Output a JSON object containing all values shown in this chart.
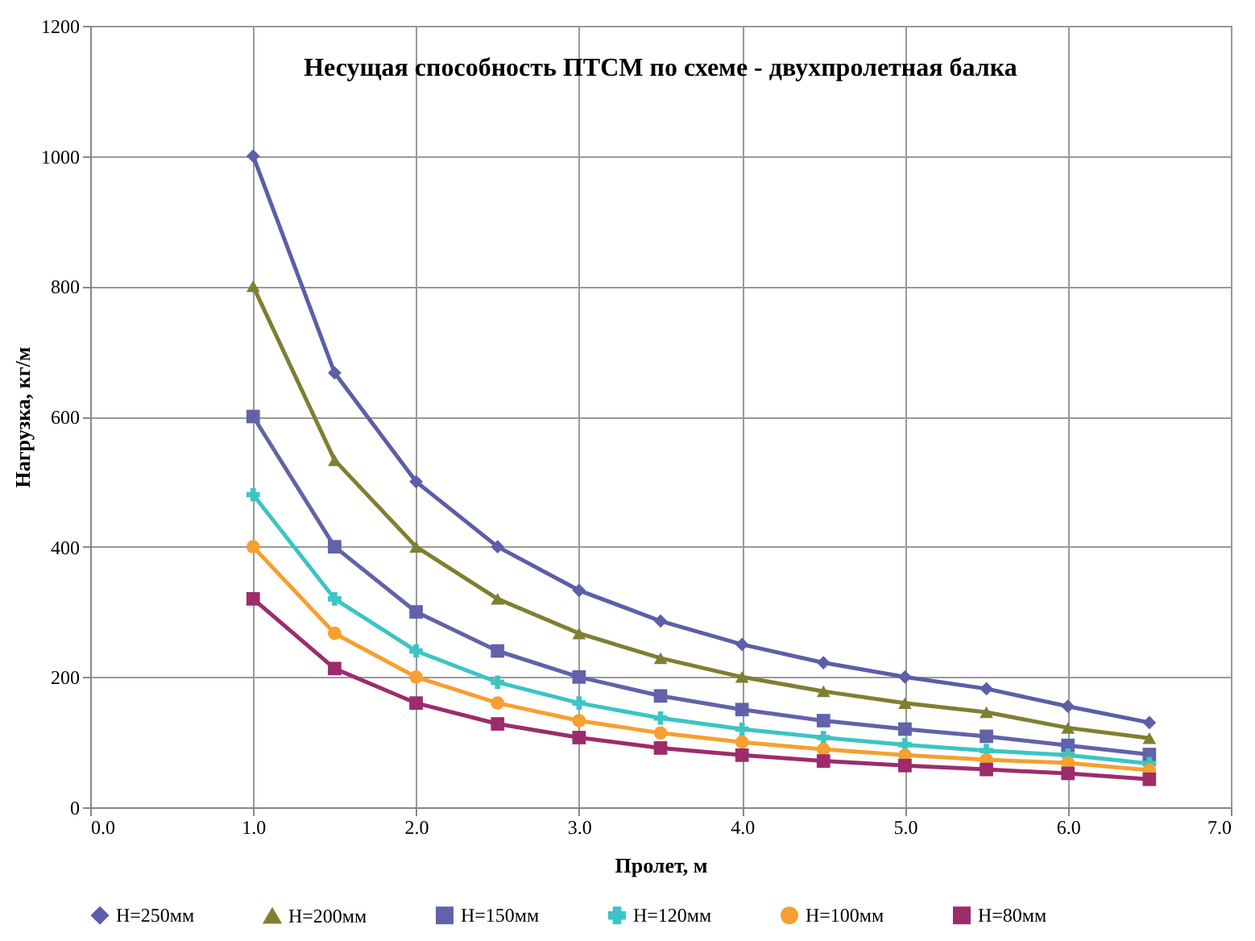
{
  "chart_data": {
    "type": "line",
    "title": "Несущая способность ПТСМ по схеме - двухпролетная балка",
    "xlabel": "Пролет, м",
    "ylabel": "Нагрузка, кг/м",
    "x": [
      1.0,
      1.5,
      2.0,
      2.5,
      3.0,
      3.5,
      4.0,
      4.5,
      5.0,
      5.5,
      6.0,
      6.5
    ],
    "series": [
      {
        "name": "H=250мм",
        "color": "#5c5ea8",
        "marker": "diamond",
        "values": [
          1000,
          667,
          500,
          400,
          333,
          286,
          250,
          222,
          200,
          182,
          155,
          130
        ]
      },
      {
        "name": "H=200мм",
        "color": "#7f7f32",
        "marker": "triangle",
        "values": [
          800,
          533,
          400,
          320,
          267,
          229,
          200,
          178,
          160,
          146,
          122,
          106
        ]
      },
      {
        "name": "H=150мм",
        "color": "#6262aa",
        "marker": "square",
        "values": [
          600,
          400,
          300,
          240,
          200,
          171,
          150,
          133,
          120,
          109,
          95,
          81
        ]
      },
      {
        "name": "H=120мм",
        "color": "#3cc4c4",
        "marker": "cross",
        "values": [
          480,
          320,
          240,
          192,
          160,
          137,
          120,
          107,
          96,
          87,
          80,
          67
        ]
      },
      {
        "name": "H=100мм",
        "color": "#f5a030",
        "marker": "circle",
        "values": [
          400,
          267,
          200,
          160,
          133,
          114,
          100,
          89,
          80,
          73,
          68,
          57
        ]
      },
      {
        "name": "H=80мм",
        "color": "#9c2c6c",
        "marker": "square",
        "values": [
          320,
          213,
          160,
          128,
          107,
          91,
          80,
          71,
          64,
          58,
          52,
          43
        ]
      }
    ],
    "xlim": [
      0,
      7
    ],
    "xticks": [
      {
        "value": 0,
        "label": "0.0"
      },
      {
        "value": 1,
        "label": "1.0"
      },
      {
        "value": 2,
        "label": "2.0"
      },
      {
        "value": 3,
        "label": "3.0"
      },
      {
        "value": 4,
        "label": "4.0"
      },
      {
        "value": 5,
        "label": "5.0"
      },
      {
        "value": 6,
        "label": "6.0"
      },
      {
        "value": 7,
        "label": "7.0"
      }
    ],
    "ylim": [
      0,
      1200
    ],
    "yticks": [
      0,
      200,
      400,
      600,
      800,
      1000,
      1200
    ],
    "grid": true,
    "legend": "bottom",
    "line_style": "solid"
  }
}
